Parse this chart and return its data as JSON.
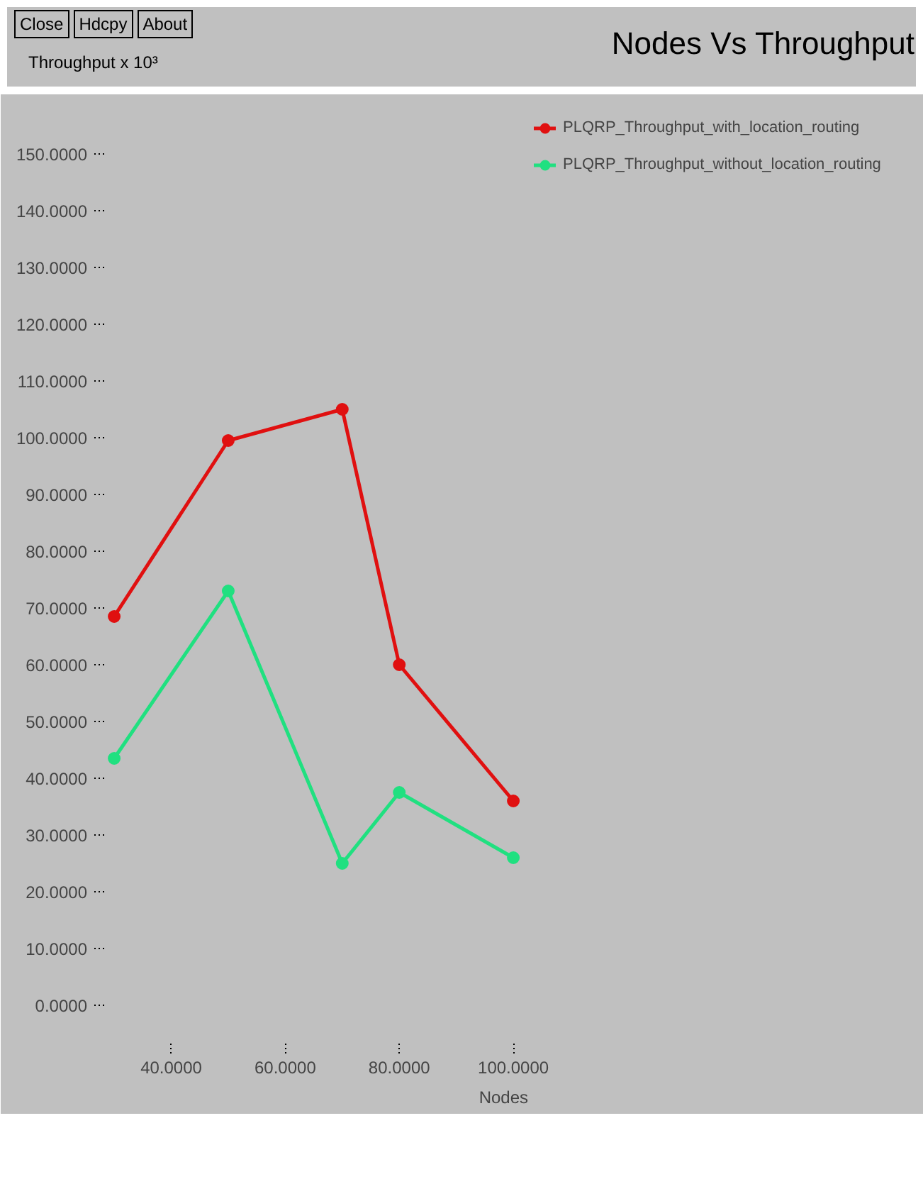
{
  "chart_data": {
    "type": "line",
    "title": "Nodes Vs Throughput",
    "xlabel": "Nodes",
    "ylabel": "Throughput x 10³",
    "annotations": [
      "Close",
      "Hdcpy",
      "About"
    ],
    "x": [
      30,
      50,
      70,
      80,
      100
    ],
    "series": [
      {
        "name": "PLQRP_Throughput_with_location_routing",
        "color": "#e01010",
        "values": [
          68.5,
          99.5,
          105,
          60,
          36
        ]
      },
      {
        "name": "PLQRP_Throughput_without_location_routing",
        "color": "#20e080",
        "values": [
          43.5,
          73,
          25,
          37.5,
          26
        ]
      }
    ],
    "xlim": [
      28,
      102.6
    ],
    "ylim": [
      -7,
      158
    ],
    "xticks": [
      {
        "value": 40,
        "label": "40.0000"
      },
      {
        "value": 60,
        "label": "60.0000"
      },
      {
        "value": 80,
        "label": "80.0000"
      },
      {
        "value": 100,
        "label": "100.0000"
      }
    ],
    "yticks": [
      {
        "value": 0,
        "label": "0.0000"
      },
      {
        "value": 10,
        "label": "10.0000"
      },
      {
        "value": 20,
        "label": "20.0000"
      },
      {
        "value": 30,
        "label": "30.0000"
      },
      {
        "value": 40,
        "label": "40.0000"
      },
      {
        "value": 50,
        "label": "50.0000"
      },
      {
        "value": 60,
        "label": "60.0000"
      },
      {
        "value": 70,
        "label": "70.0000"
      },
      {
        "value": 80,
        "label": "80.0000"
      },
      {
        "value": 90,
        "label": "90.0000"
      },
      {
        "value": 100,
        "label": "100.0000"
      },
      {
        "value": 110,
        "label": "110.0000"
      },
      {
        "value": 120,
        "label": "120.0000"
      },
      {
        "value": 130,
        "label": "130.0000"
      },
      {
        "value": 140,
        "label": "140.0000"
      },
      {
        "value": 150,
        "label": "150.0000"
      }
    ],
    "grid": false,
    "legend": "top right",
    "marker": "circle",
    "line_style": "solid"
  }
}
